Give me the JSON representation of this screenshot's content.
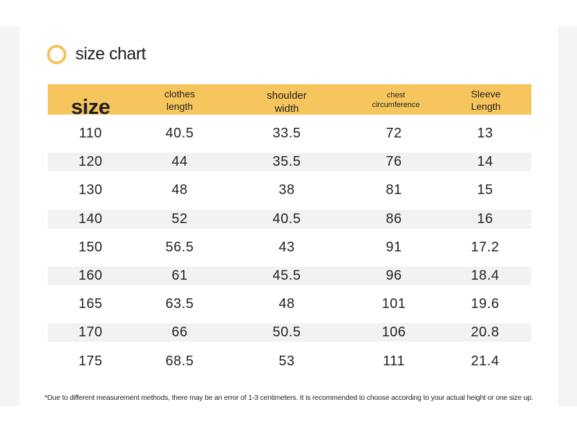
{
  "title": "size chart",
  "colors": {
    "accent": "#f7c55d",
    "stripe": "#f2f2f2",
    "text": "#222222"
  },
  "icon": "ring-icon",
  "headers": {
    "size": "size",
    "clothes_1": "clothes",
    "clothes_2": "length",
    "shoulder_1": "shoulder",
    "shoulder_2": "width",
    "chest_1": "chest",
    "chest_2": "circumference",
    "sleeve_1": "Sleeve",
    "sleeve_2": "Length"
  },
  "rows": [
    [
      "110",
      "40.5",
      "33.5",
      "72",
      "13"
    ],
    [
      "120",
      "44",
      "35.5",
      "76",
      "14"
    ],
    [
      "130",
      "48",
      "38",
      "81",
      "15"
    ],
    [
      "140",
      "52",
      "40.5",
      "86",
      "16"
    ],
    [
      "150",
      "56.5",
      "43",
      "91",
      "17.2"
    ],
    [
      "160",
      "61",
      "45.5",
      "96",
      "18.4"
    ],
    [
      "165",
      "63.5",
      "48",
      "101",
      "19.6"
    ],
    [
      "170",
      "66",
      "50.5",
      "106",
      "20.8"
    ],
    [
      "175",
      "68.5",
      "53",
      "111",
      "21.4"
    ]
  ],
  "footnote": "*Due to different measurement methods, there may be an error of 1-3 centimeters. It is recommended to choose according to your actual height or one size up."
}
